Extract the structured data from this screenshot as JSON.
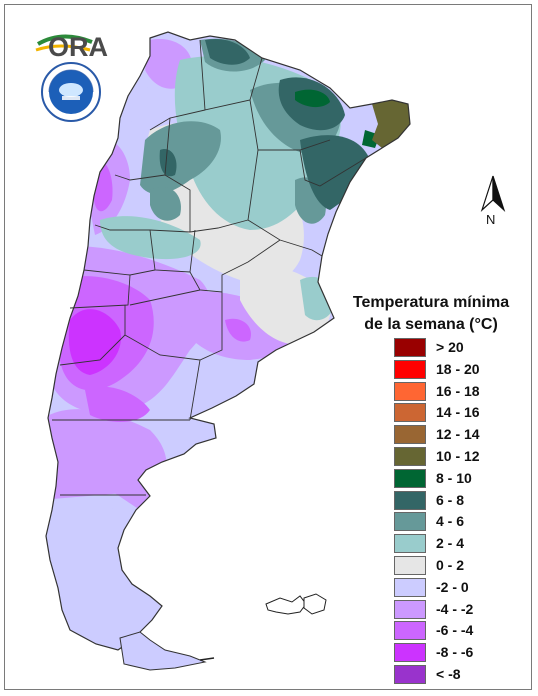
{
  "logo": {
    "name": "ORA",
    "seal_text": "SERVICIO METEOROLÓGICO NACIONAL · ARGENTINA"
  },
  "north_arrow": {
    "label": "N"
  },
  "legend": {
    "title_line1": "Temperatura mínima",
    "title_line2": "de la semana (°C)",
    "items": [
      {
        "label": "> 20",
        "color": "#990000"
      },
      {
        "label": "18 - 20",
        "color": "#ff0000"
      },
      {
        "label": "16 - 18",
        "color": "#ff6633"
      },
      {
        "label": "14 - 16",
        "color": "#cc6633"
      },
      {
        "label": "12 - 14",
        "color": "#996633"
      },
      {
        "label": "10 - 12",
        "color": "#666633"
      },
      {
        "label": "8 - 10",
        "color": "#006633"
      },
      {
        "label": "6 - 8",
        "color": "#336666"
      },
      {
        "label": "4 - 6",
        "color": "#669999"
      },
      {
        "label": "2 - 4",
        "color": "#99cccc"
      },
      {
        "label": "0 - 2",
        "color": "#e6e6e6"
      },
      {
        "label": "-2 - 0",
        "color": "#ccccff"
      },
      {
        "label": "-4 - -2",
        "color": "#cc99ff"
      },
      {
        "label": "-6 - -4",
        "color": "#cc66ff"
      },
      {
        "label": "-8 - -6",
        "color": "#cc33ff"
      },
      {
        "label": "< -8",
        "color": "#9933cc"
      }
    ]
  }
}
